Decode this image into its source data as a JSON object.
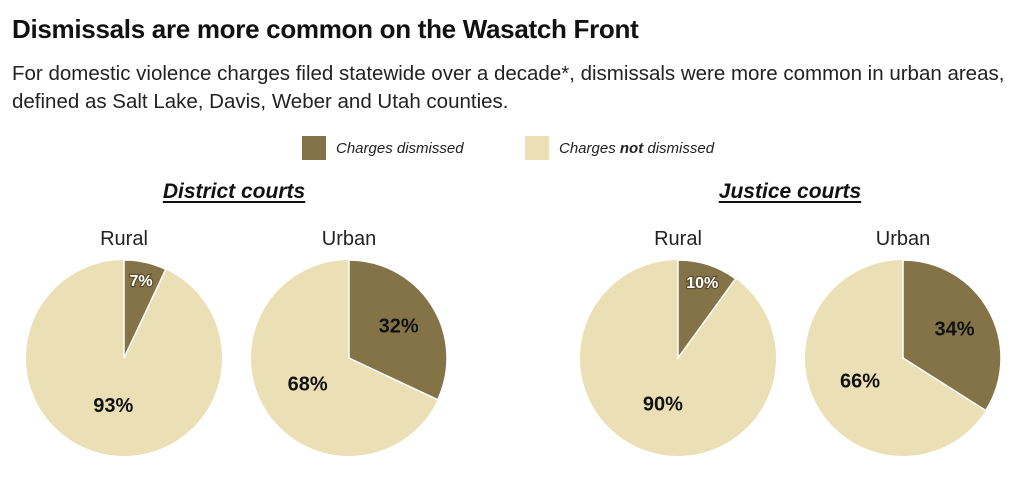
{
  "title": "Dismissals are more common on the Wasatch Front",
  "subtitle": "For domestic violence charges filed statewide over a decade*, dismissals were more common in urban areas, defined as Salt Lake, Davis, Weber and Utah counties.",
  "legend": {
    "dismissed_label": "Charges dismissed",
    "not_dismissed_prefix": "Charges ",
    "not_dismissed_bold": "not",
    "not_dismissed_suffix": " dismissed"
  },
  "colors": {
    "dismissed": "#857348",
    "not_dismissed": "#ebdfb5",
    "divider": "#ffffff"
  },
  "chart_data": [
    {
      "type": "pie",
      "group": "District courts",
      "title": "Rural",
      "slices": [
        {
          "name": "Charges dismissed",
          "value": 7,
          "label": "7%"
        },
        {
          "name": "Charges not dismissed",
          "value": 93,
          "label": "93%"
        }
      ]
    },
    {
      "type": "pie",
      "group": "District courts",
      "title": "Urban",
      "slices": [
        {
          "name": "Charges dismissed",
          "value": 32,
          "label": "32%"
        },
        {
          "name": "Charges not dismissed",
          "value": 68,
          "label": "68%"
        }
      ]
    },
    {
      "type": "pie",
      "group": "Justice courts",
      "title": "Rural",
      "slices": [
        {
          "name": "Charges dismissed",
          "value": 10,
          "label": "10%"
        },
        {
          "name": "Charges not dismissed",
          "value": 90,
          "label": "90%"
        }
      ]
    },
    {
      "type": "pie",
      "group": "Justice courts",
      "title": "Urban",
      "slices": [
        {
          "name": "Charges dismissed",
          "value": 34,
          "label": "34%"
        },
        {
          "name": "Charges not dismissed",
          "value": 66,
          "label": "66%"
        }
      ]
    }
  ],
  "groups": [
    "District courts",
    "Justice courts"
  ]
}
